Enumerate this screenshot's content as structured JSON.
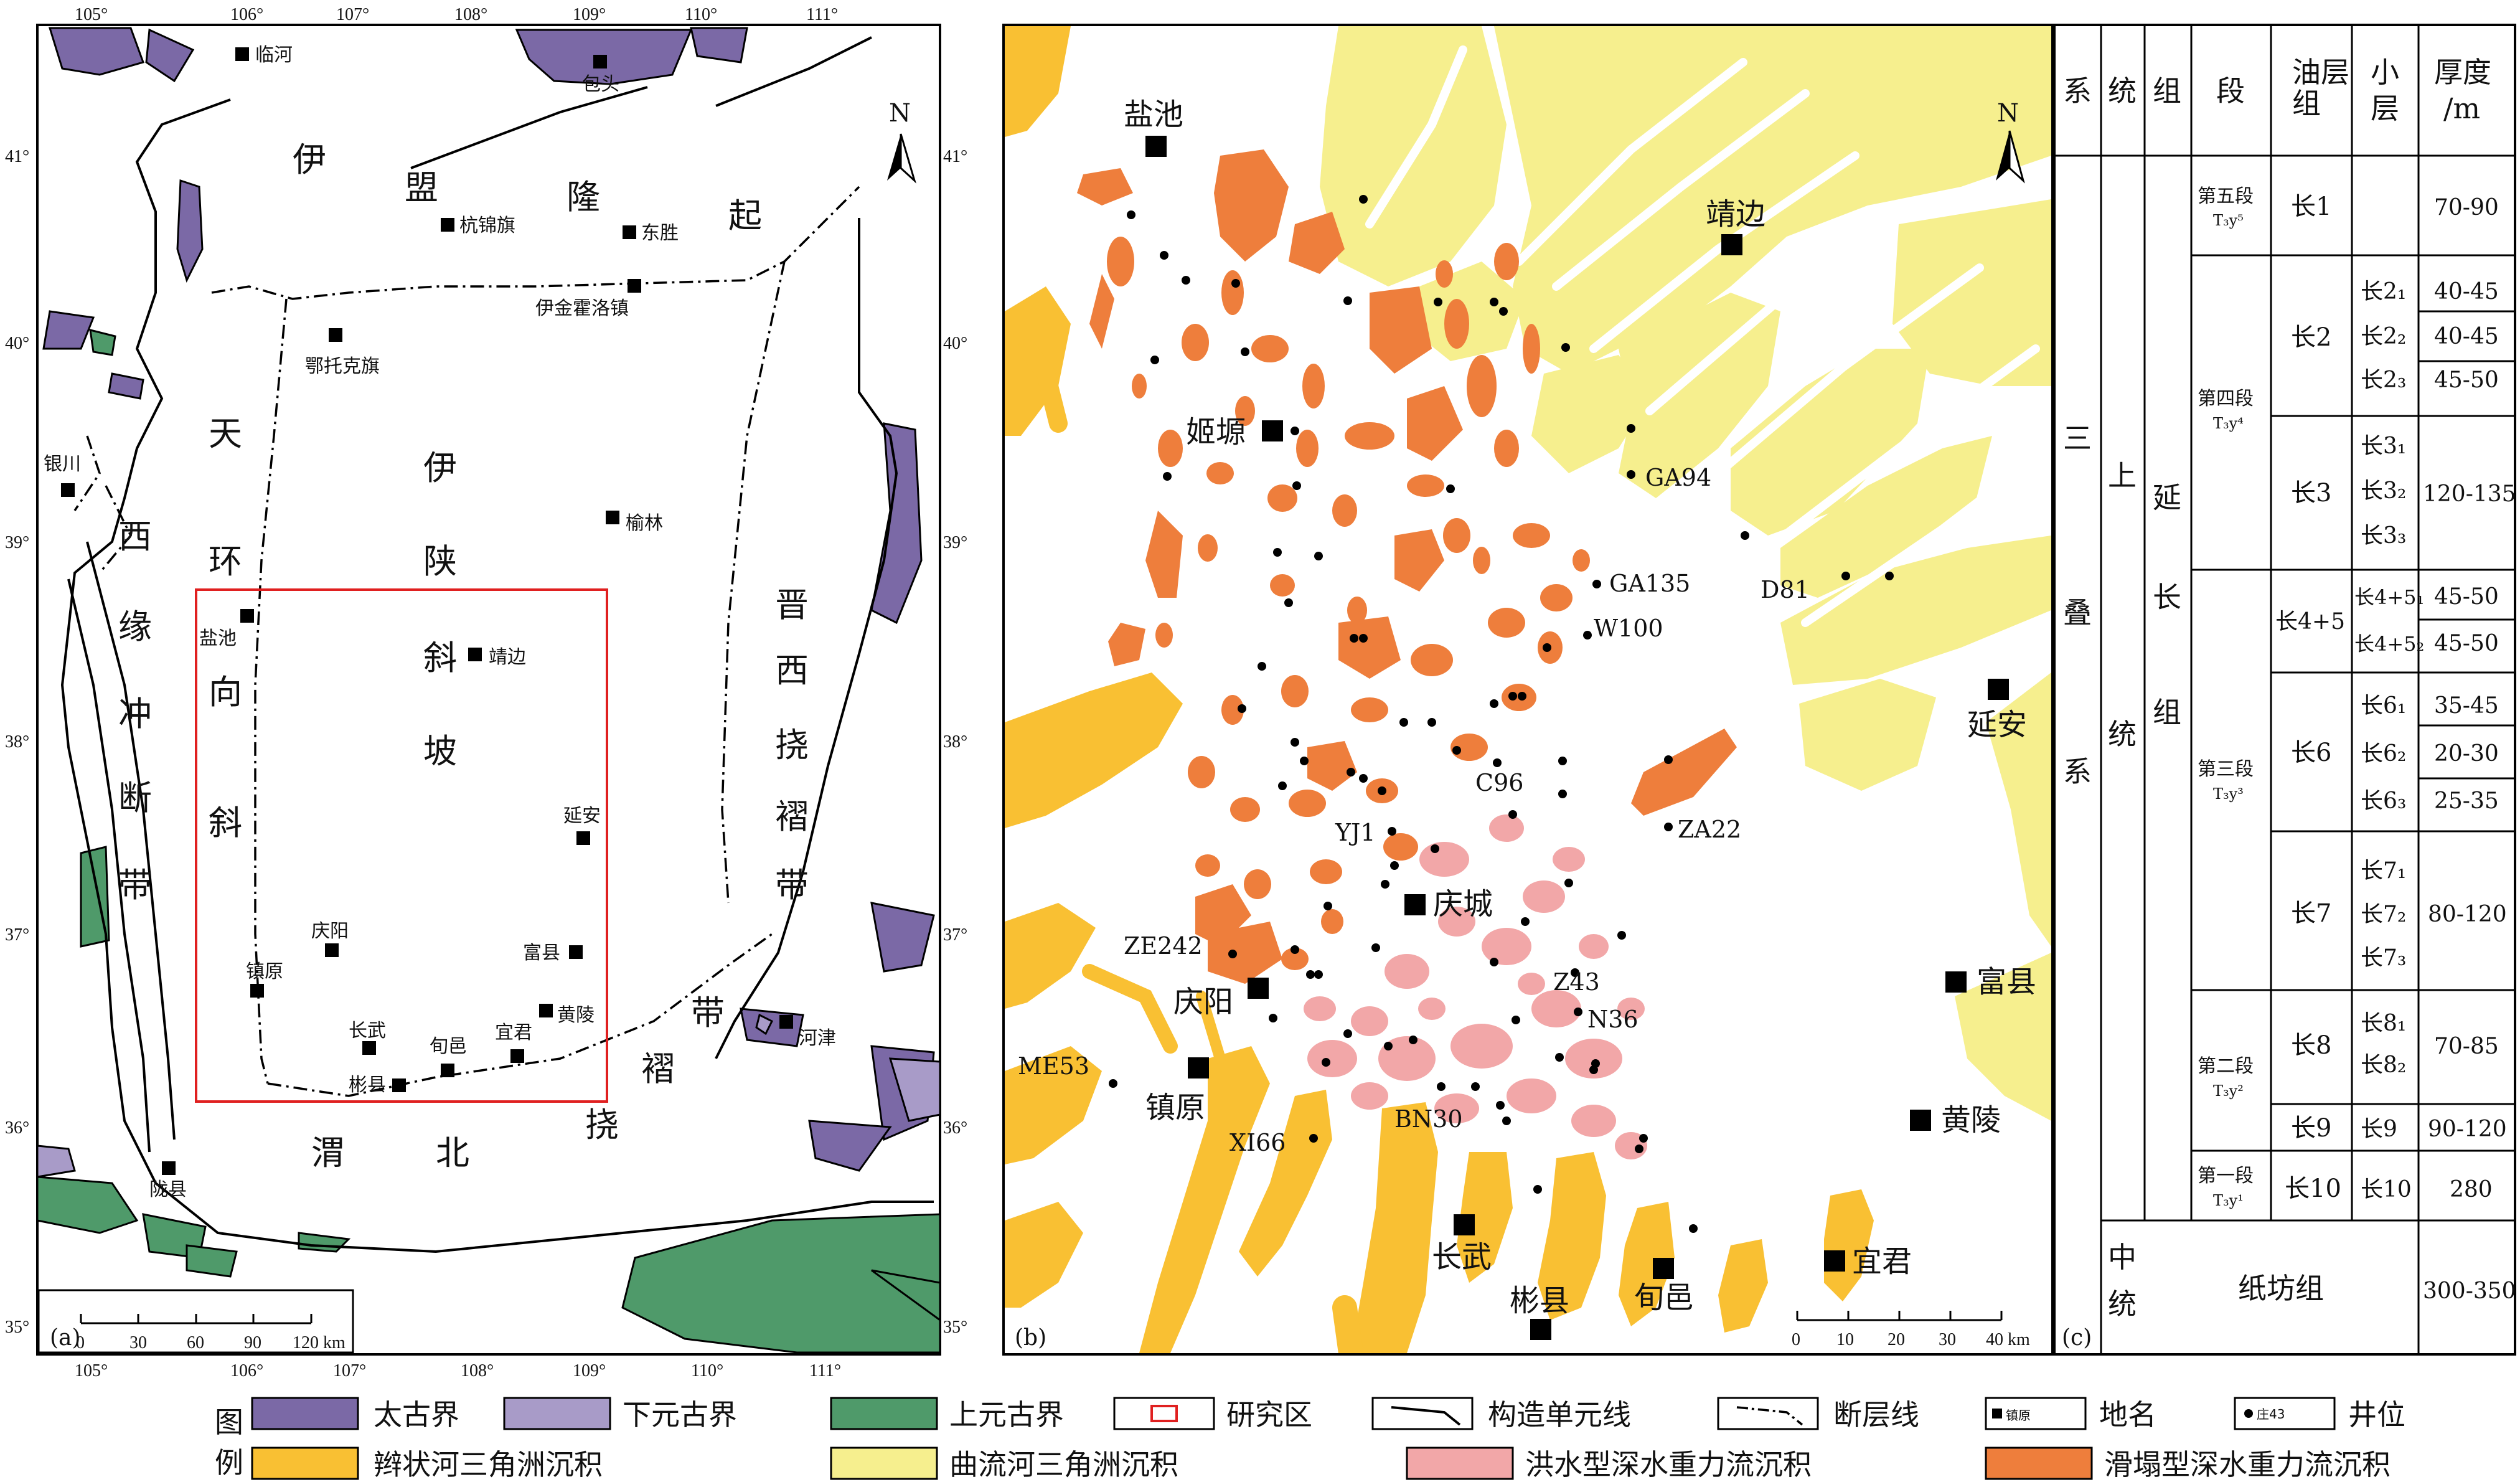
{
  "panel_a": {
    "label": "(a)",
    "lon_ticks": [
      "105°",
      "106°",
      "107°",
      "108°",
      "109°",
      "110°",
      "111°"
    ],
    "lat_ticks": [
      "41°",
      "40°",
      "39°",
      "38°",
      "37°",
      "36°",
      "35°"
    ],
    "north": "N",
    "units": {
      "yimeng": [
        "伊",
        "盟",
        "隆",
        "起"
      ],
      "tianhuan": [
        "天",
        "环",
        "向",
        "斜"
      ],
      "xiyuan": [
        "西",
        "缘",
        "冲",
        "断",
        "带"
      ],
      "yishan": [
        "伊",
        "陕",
        "斜",
        "坡"
      ],
      "jinxi": [
        "晋",
        "西",
        "挠",
        "褶",
        "带"
      ],
      "weibei": [
        "渭",
        "北",
        "挠",
        "褶",
        "带"
      ]
    },
    "places": [
      "临河",
      "包头",
      "杭锦旗",
      "东胜",
      "伊金霍洛镇",
      "鄂托克旗",
      "银川",
      "榆林",
      "盐池",
      "靖边",
      "延安",
      "庆阳",
      "镇原",
      "富县",
      "黄陵",
      "长武",
      "旬邑",
      "宜君",
      "彬县",
      "河津",
      "陇县"
    ],
    "scale": {
      "ticks": [
        "0",
        "30",
        "60",
        "90",
        "120 km"
      ]
    }
  },
  "panel_b": {
    "label": "(b)",
    "north": "N",
    "towns": [
      "盐池",
      "靖边",
      "姬塬",
      "延安",
      "庆城",
      "庆阳",
      "富县",
      "镇原",
      "黄陵",
      "长武",
      "彬县",
      "旬邑",
      "宜君"
    ],
    "wells": [
      "GA94",
      "GA135",
      "D81",
      "W100",
      "C96",
      "ZA22",
      "YJ1",
      "ZE242",
      "Z43",
      "N36",
      "ME53",
      "BN30",
      "XI66"
    ],
    "scale": {
      "ticks": [
        "0",
        "10",
        "20",
        "30",
        "40 km"
      ]
    }
  },
  "panel_c": {
    "label": "(c)",
    "headers": {
      "xi": "系",
      "tong": "统",
      "zu": "组",
      "duan": "段",
      "youceng": [
        "油层",
        "组"
      ],
      "xiaoceng": [
        "小",
        "层"
      ],
      "houdu": [
        "厚度",
        "/m"
      ]
    },
    "system": [
      "三",
      "叠",
      "系"
    ],
    "upper": [
      "上",
      "统"
    ],
    "middle": [
      "中",
      "统"
    ],
    "yanchang": [
      "延",
      "长",
      "组"
    ],
    "zhifang": "纸坊组",
    "zhifang_thick": "300-350",
    "segments": [
      {
        "name": "第五段",
        "sym": "T₃y⁵"
      },
      {
        "name": "第四段",
        "sym": "T₃y⁴"
      },
      {
        "name": "第三段",
        "sym": "T₃y³"
      },
      {
        "name": "第二段",
        "sym": "T₃y²"
      },
      {
        "name": "第一段",
        "sym": "T₃y¹"
      }
    ],
    "oil_groups": [
      "长1",
      "长2",
      "长3",
      "长4+5",
      "长6",
      "长7",
      "长8",
      "长9",
      "长10"
    ],
    "sub_layers": {
      "c2": [
        "长2₁",
        "长2₂",
        "长2₃"
      ],
      "c3": [
        "长3₁",
        "长3₂",
        "长3₃"
      ],
      "c45": [
        "长4+5₁",
        "长4+5₂"
      ],
      "c6": [
        "长6₁",
        "长6₂",
        "长6₃"
      ],
      "c7": [
        "长7₁",
        "长7₂",
        "长7₃"
      ],
      "c8": [
        "长8₁",
        "长8₂"
      ],
      "c9": [
        "长9"
      ],
      "c10": [
        "长10"
      ]
    },
    "thickness": {
      "c1": "70-90",
      "c2": [
        "40-45",
        "40-45",
        "45-50"
      ],
      "c3": "120-135",
      "c45": [
        "45-50",
        "45-50"
      ],
      "c6": [
        "35-45",
        "20-30",
        "25-35"
      ],
      "c7": "80-120",
      "c8": "70-85",
      "c9": "90-120",
      "c10": "280"
    }
  },
  "legend": {
    "title": [
      "图",
      "例"
    ],
    "items": [
      "太古界",
      "下元古界",
      "上元古界",
      "研究区",
      "构造单元线",
      "断层线",
      "地名",
      "井位",
      "辫状河三角洲沉积",
      "曲流河三角洲沉积",
      "洪水型深水重力流沉积",
      "滑塌型深水重力流沉积"
    ],
    "sample_place": "镇原",
    "sample_well": "庄43"
  },
  "colors": {
    "archean": "#7B69A6",
    "lower_proterozoic": "#A89BC8",
    "upper_proterozoic": "#4F9A6A",
    "braided": "#F9C033",
    "meandering": "#F6EF8E",
    "flood": "#F2A7A8",
    "slump": "#EE7E3C",
    "study_area": "#E02020"
  }
}
